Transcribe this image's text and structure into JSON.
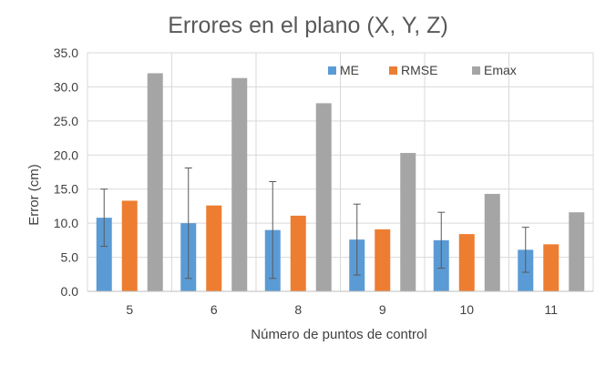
{
  "chart_data": {
    "type": "bar",
    "title": "Errores en el plano (X, Y, Z)",
    "xlabel": "Número de puntos de control",
    "ylabel": "Error (cm)",
    "categories": [
      "5",
      "6",
      "8",
      "9",
      "10",
      "11"
    ],
    "ylim": [
      0,
      35
    ],
    "yticks": [
      "0.0",
      "5.0",
      "10.0",
      "15.0",
      "20.0",
      "25.0",
      "30.0",
      "35.0"
    ],
    "series": [
      {
        "name": "ME",
        "color": "#5B9BD5",
        "values": [
          10.8,
          10.0,
          9.0,
          7.6,
          7.5,
          6.1
        ],
        "error": [
          4.2,
          8.1,
          7.1,
          5.2,
          4.1,
          3.3
        ]
      },
      {
        "name": "RMSE",
        "color": "#ED7D31",
        "values": [
          13.3,
          12.6,
          11.1,
          9.1,
          8.4,
          6.9
        ]
      },
      {
        "name": "Emax",
        "color": "#A5A5A5",
        "values": [
          32.0,
          31.3,
          27.6,
          20.3,
          14.3,
          11.6
        ]
      }
    ],
    "grid": true,
    "legend": "top-right"
  }
}
